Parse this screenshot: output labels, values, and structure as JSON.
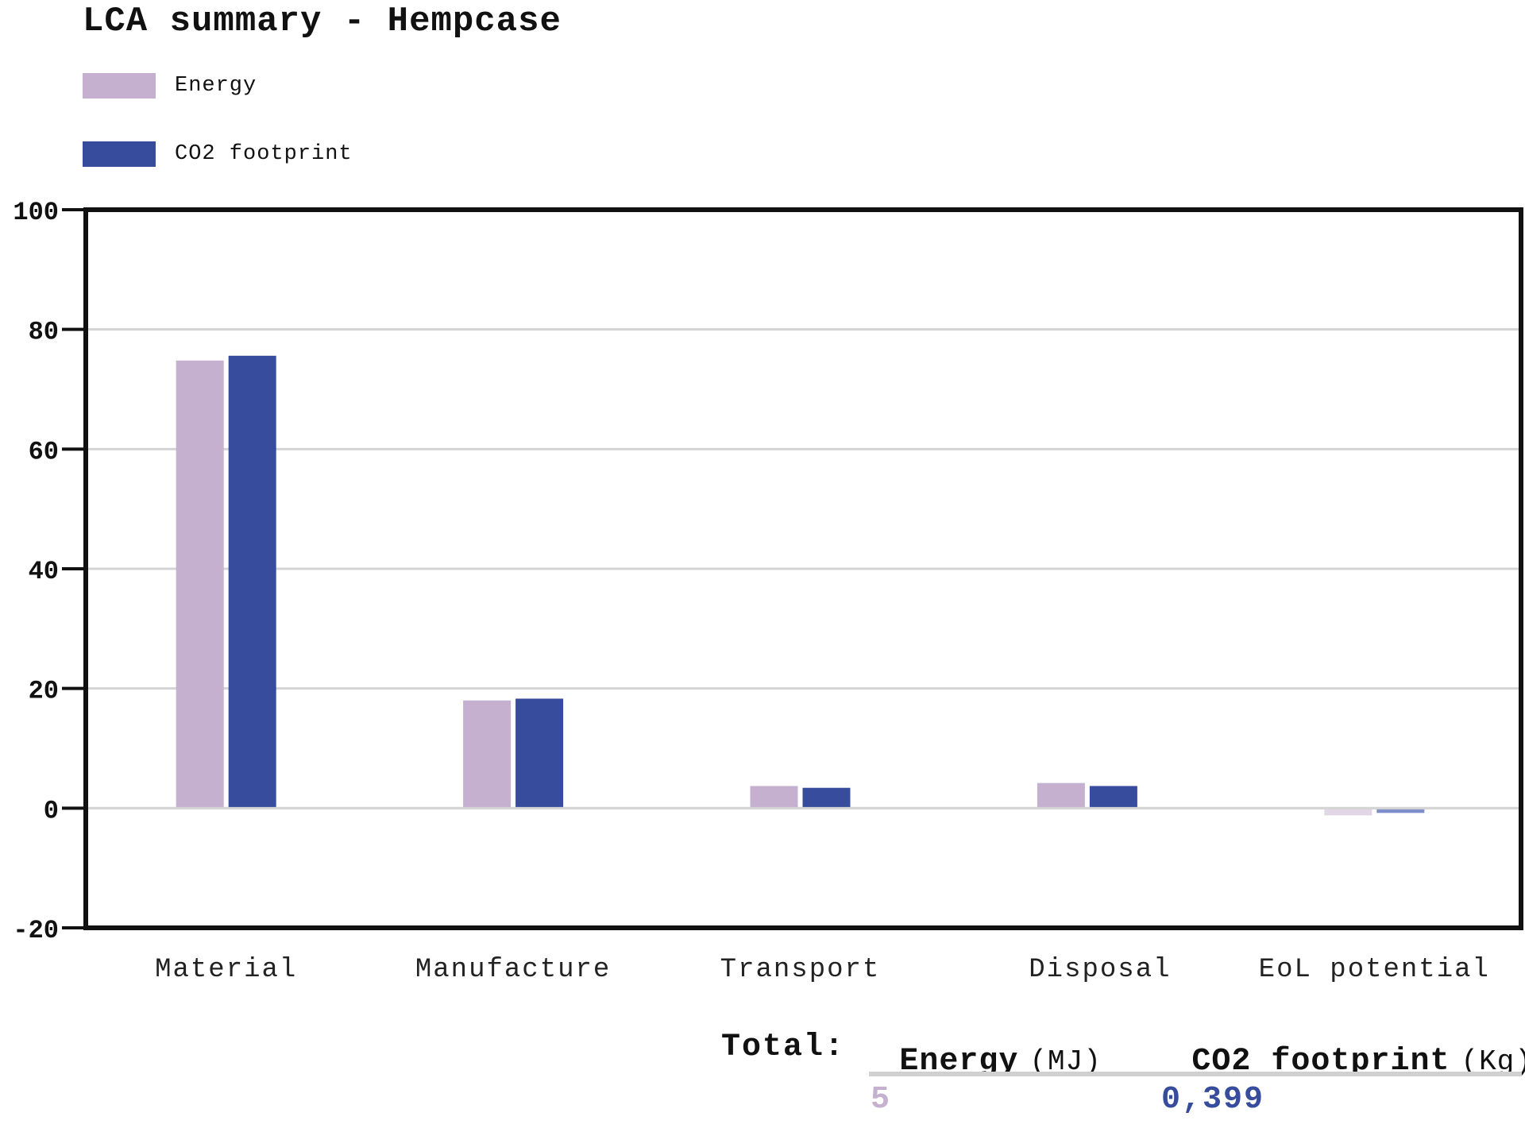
{
  "title": "LCA summary - Hempcase",
  "legend": [
    {
      "label": "Energy",
      "color": "#c5b1cf"
    },
    {
      "label": "CO2 footprint",
      "color": "#374c9c"
    }
  ],
  "chart_data": {
    "type": "bar",
    "categories": [
      "Material",
      "Manufacture",
      "Transport",
      "Disposal",
      "EoL potential"
    ],
    "series": [
      {
        "name": "Energy",
        "color": "#c5b1cf",
        "values": [
          74.8,
          18.0,
          3.7,
          4.2,
          -1.2
        ]
      },
      {
        "name": "CO2 footprint",
        "color": "#374c9c",
        "values": [
          75.6,
          18.3,
          3.4,
          3.7,
          -0.8
        ]
      }
    ],
    "negative_colors": [
      "#e1d6e6",
      "#7d8ecb"
    ],
    "yticks": [
      100,
      80,
      60,
      40,
      20,
      0,
      -20
    ],
    "ylim": [
      -20,
      100
    ],
    "grid": true,
    "legend_position": "top-left"
  },
  "totals": {
    "label": "Total:",
    "energy": {
      "name": "Energy",
      "unit": "(MJ)",
      "value": "5",
      "color": "#c5b1cf"
    },
    "co2": {
      "name": "CO2 footprint",
      "unit": "(Kg)",
      "value": "0,399",
      "color": "#374c9c"
    }
  }
}
